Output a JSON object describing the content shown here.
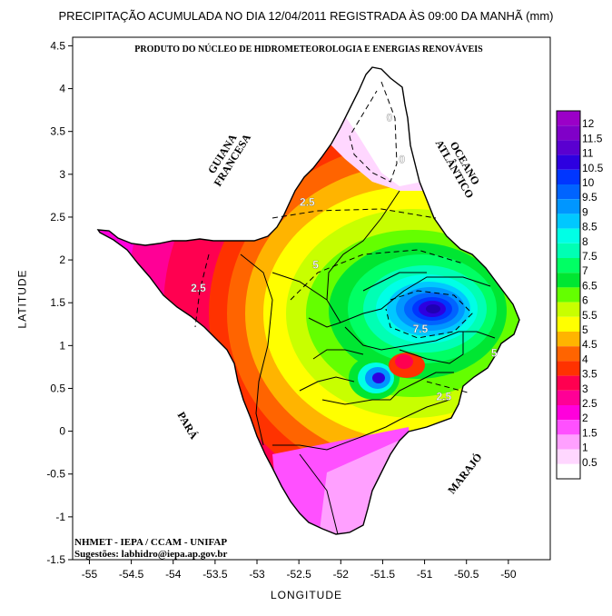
{
  "title": "PRECIPITAÇÃO ACUMULADA NO DIA 12/04/2011 REGISTRADA ÀS 09:00 DA MANHÃ (mm)",
  "subtitle": "PRODUTO DO NÚCLEO DE HIDROMETEOROLOGIA E ENERGIAS RENOVÁVEIS",
  "axes": {
    "x_title": "LONGITUDE",
    "y_title": "LATITUDE",
    "x_range": [
      -55.2,
      -49.5
    ],
    "y_range": [
      -1.5,
      4.6
    ],
    "x_ticks": [
      -55,
      -54.5,
      -54,
      -53.5,
      -53,
      -52.5,
      -52,
      -51.5,
      -51,
      -50.5,
      -50
    ],
    "y_ticks": [
      4.5,
      4,
      3.5,
      3,
      2.5,
      2,
      1.5,
      1,
      0.5,
      0,
      -0.5,
      -1,
      -1.5
    ]
  },
  "region_labels": {
    "guiana_line1": "GUIANA",
    "guiana_line2": "FRANCESA",
    "oceano_line1": "OCEANO",
    "oceano_line2": "ATLÂNTICO",
    "para": "PARÁ",
    "marajo": "MARAJÓ"
  },
  "contour_labels": [
    {
      "text": "0",
      "lon": -51.42,
      "lat": 3.62
    },
    {
      "text": "0",
      "lon": -51.27,
      "lat": 3.13
    },
    {
      "text": "2.5",
      "lon": -52.4,
      "lat": 2.63
    },
    {
      "text": "2.5",
      "lon": -53.7,
      "lat": 1.63
    },
    {
      "text": "2.5",
      "lon": -50.77,
      "lat": 0.36
    },
    {
      "text": "5",
      "lon": -52.3,
      "lat": 1.9
    },
    {
      "text": "7.5",
      "lon": -51.05,
      "lat": 1.15
    },
    {
      "text": "5",
      "lon": -50.17,
      "lat": 0.87
    }
  ],
  "credits": {
    "line1": "NHMET - IEPA  /  CCAM - UNIFAP",
    "line2": "Sugestões: labhidro@iepa.ap.gov.br"
  },
  "legend": {
    "labels": [
      "12",
      "11.5",
      "11",
      "10.5",
      "10",
      "9.5",
      "9",
      "8.5",
      "8",
      "7.5",
      "7",
      "6.5",
      "6",
      "5.5",
      "5",
      "4.5",
      "4",
      "3.5",
      "3",
      "2.5",
      "2",
      "1.5",
      "1",
      "0.5"
    ],
    "colors": [
      "#9b00c8",
      "#8000c8",
      "#5a00d0",
      "#2d00e0",
      "#0036ff",
      "#0064ff",
      "#0096ff",
      "#00c8ff",
      "#00ffe6",
      "#00ffb4",
      "#00ff64",
      "#00e632",
      "#64ff00",
      "#c8ff00",
      "#ffff00",
      "#ffb400",
      "#ff6400",
      "#ff3200",
      "#ff0050",
      "#ff0096",
      "#ff00dc",
      "#ff50ff",
      "#ffa0ff",
      "#ffd7ff",
      "#ffffff"
    ]
  },
  "colors": {
    "max_core": "#1e00b4",
    "frame": "#000000"
  }
}
